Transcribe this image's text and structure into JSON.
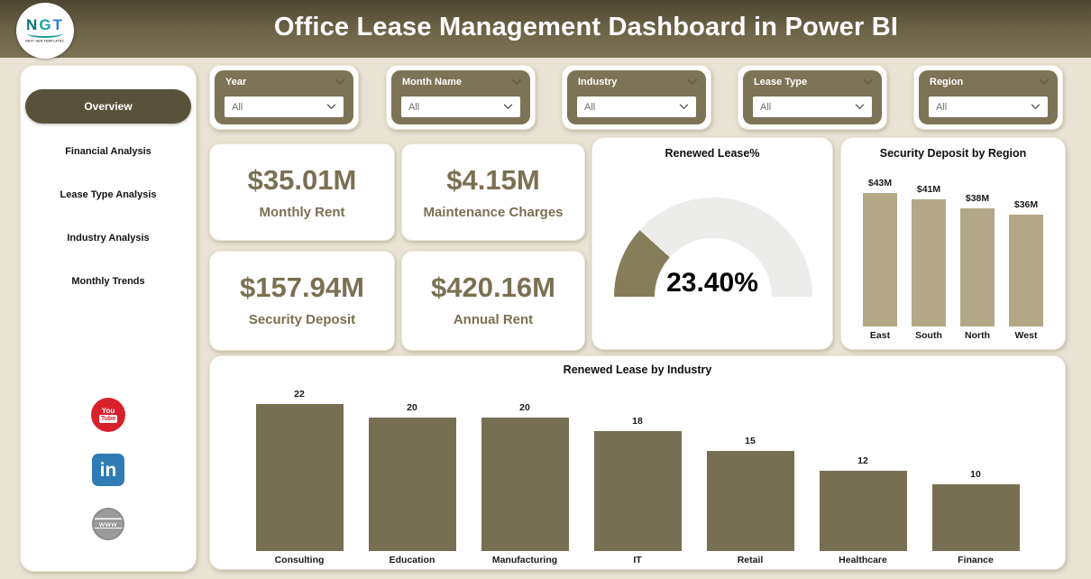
{
  "header": {
    "title": "Office Lease Management Dashboard in Power BI",
    "logo": {
      "letters": [
        {
          "char": "N"
        },
        {
          "char": "G"
        },
        {
          "char": "T"
        }
      ],
      "subtext": "NEXT GEN TEMPLATES"
    }
  },
  "sidebar": {
    "items": [
      {
        "label": "Overview",
        "active": true
      },
      {
        "label": "Financial Analysis",
        "active": false
      },
      {
        "label": "Lease Type Analysis",
        "active": false
      },
      {
        "label": "Industry Analysis",
        "active": false
      },
      {
        "label": "Monthly Trends",
        "active": false
      }
    ],
    "social": [
      {
        "name": "YouTube",
        "text_top": "You",
        "text_bottom": "Tube"
      },
      {
        "name": "LinkedIn",
        "text": "in"
      },
      {
        "name": "Website",
        "text": "www"
      }
    ]
  },
  "filters": [
    {
      "label": "Year",
      "value": "All"
    },
    {
      "label": "Month Name",
      "value": "All"
    },
    {
      "label": "Industry",
      "value": "All"
    },
    {
      "label": "Lease Type",
      "value": "All"
    },
    {
      "label": "Region",
      "value": "All"
    }
  ],
  "kpis": [
    {
      "value": "$35.01M",
      "label": "Monthly Rent"
    },
    {
      "value": "$4.15M",
      "label": "Maintenance Charges"
    },
    {
      "value": "$157.94M",
      "label": "Security Deposit"
    },
    {
      "value": "$420.16M",
      "label": "Annual Rent"
    }
  ],
  "chart_data": [
    {
      "type": "gauge",
      "title": "Renewed Lease%",
      "value": 23.4,
      "display": "23.40%",
      "min": 0,
      "max": 100,
      "fill_color": "#867d5a",
      "track_color": "#ececea"
    },
    {
      "type": "bar",
      "title": "Security Deposit by Region",
      "categories": [
        "East",
        "South",
        "North",
        "West"
      ],
      "values": [
        43,
        41,
        38,
        36
      ],
      "labels": [
        "$43M",
        "$41M",
        "$38M",
        "$36M"
      ],
      "ylim": [
        0,
        43
      ],
      "grid": false,
      "bar_color": "#b2a887"
    },
    {
      "type": "bar",
      "title": "Renewed Lease by Industry",
      "categories": [
        "Consulting",
        "Education",
        "Manufacturing",
        "IT",
        "Retail",
        "Healthcare",
        "Finance"
      ],
      "values": [
        22,
        20,
        20,
        18,
        15,
        12,
        10
      ],
      "labels": [
        "22",
        "20",
        "20",
        "18",
        "15",
        "12",
        "10"
      ],
      "ylim": [
        0,
        22
      ],
      "grid": false,
      "bar_color": "#776f53"
    }
  ],
  "colors": {
    "background": "#e8e3d4",
    "header_olive": "#6e6548",
    "accent_olive": "#7d7356",
    "active_nav": "#59523a",
    "kpi_text": "#7a7052",
    "region_bar": "#b2a887",
    "industry_bar": "#776f53",
    "gauge_fill": "#867d5a",
    "gauge_track": "#ececea",
    "youtube_red": "#d8212b",
    "linkedin_blue": "#2f7bb5"
  }
}
